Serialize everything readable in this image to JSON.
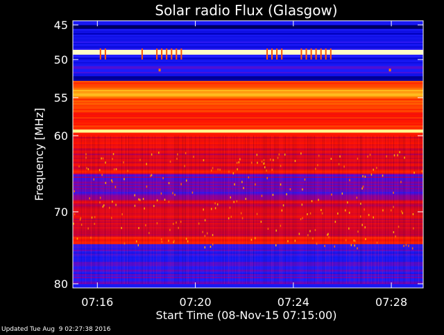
{
  "chart_data": {
    "type": "heatmap",
    "title": "Solar radio Flux (Glasgow)",
    "xlabel": "Start Time (08-Nov-15 07:15:00)",
    "ylabel": "Frequency [MHz]",
    "x_ticks": [
      "07:16",
      "07:20",
      "07:24",
      "07:28"
    ],
    "x_tick_minutes": [
      16,
      20,
      24,
      28
    ],
    "xlim_minutes": [
      15.0,
      29.3
    ],
    "y_ticks": [
      45,
      50,
      55,
      60,
      70,
      80
    ],
    "ylim": [
      45,
      80
    ],
    "y_scale": "nonlinear (stretched at low frequencies)",
    "colormap": "blue-red-yellow-white",
    "bands": [
      {
        "f0": 45.0,
        "f1": 45.6,
        "level": 0.05
      },
      {
        "f0": 45.6,
        "f1": 47.2,
        "level": 0.15
      },
      {
        "f0": 47.2,
        "f1": 48.6,
        "level": 0.2
      },
      {
        "f0": 48.6,
        "f1": 49.3,
        "level": 0.95
      },
      {
        "f0": 49.3,
        "f1": 50.5,
        "level": 0.18
      },
      {
        "f0": 50.5,
        "f1": 52.2,
        "level": 0.22
      },
      {
        "f0": 52.2,
        "f1": 52.8,
        "level": 0.1
      },
      {
        "f0": 52.8,
        "f1": 53.4,
        "level": 0.55
      },
      {
        "f0": 53.4,
        "f1": 54.0,
        "level": 0.62
      },
      {
        "f0": 54.0,
        "f1": 55.0,
        "level": 0.72
      },
      {
        "f0": 55.0,
        "f1": 56.5,
        "level": 0.6
      },
      {
        "f0": 56.5,
        "f1": 59.2,
        "level": 0.55
      },
      {
        "f0": 59.2,
        "f1": 59.6,
        "level": 0.9
      },
      {
        "f0": 59.6,
        "f1": 61.5,
        "level": 0.5
      },
      {
        "f0": 61.5,
        "f1": 64.5,
        "level": 0.45
      },
      {
        "f0": 64.5,
        "f1": 65.0,
        "level": 0.5
      },
      {
        "f0": 65.0,
        "f1": 68.5,
        "level": 0.3
      },
      {
        "f0": 68.5,
        "f1": 73.5,
        "level": 0.45
      },
      {
        "f0": 73.5,
        "f1": 74.5,
        "level": 0.5
      },
      {
        "f0": 74.5,
        "f1": 80.0,
        "level": 0.25
      }
    ],
    "grid": false,
    "footer": "Updated Tue Aug  9 02:27:38 2016"
  }
}
